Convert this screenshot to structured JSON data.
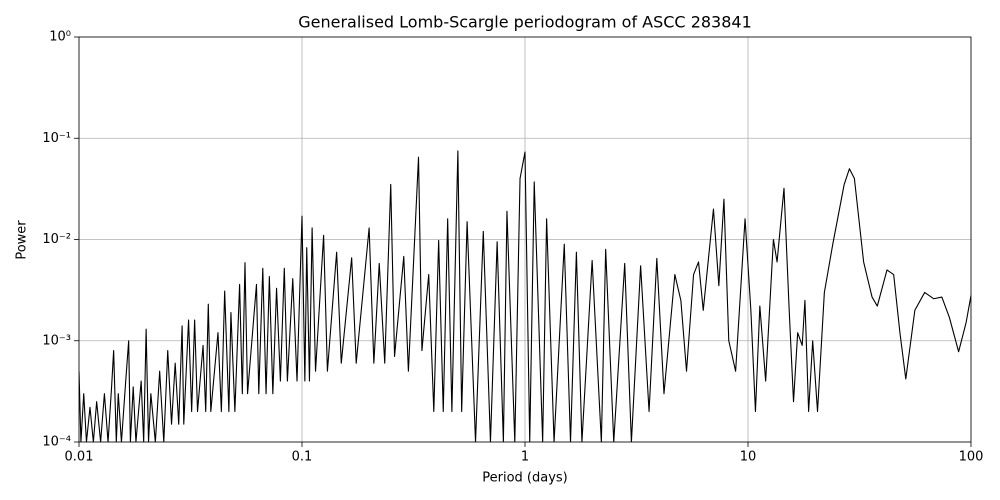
{
  "chart_data": {
    "type": "line",
    "title": "Generalised Lomb-Scargle periodogram of ASCC 283841",
    "x_label": "Period (days)",
    "y_label": "Power",
    "x_scale": "log",
    "y_scale": "log",
    "grid": true,
    "color": "#000000",
    "xlim": [
      0.01,
      100
    ],
    "ylim": [
      0.0001,
      1
    ],
    "xticks": [
      0.01,
      0.1,
      1,
      10,
      100
    ],
    "yticks": [
      {
        "value": 0.0001,
        "label": "10⁻⁴"
      },
      {
        "value": 0.001,
        "label": "10⁻³"
      },
      {
        "value": 0.01,
        "label": "10⁻²"
      },
      {
        "value": 0.1,
        "label": "10⁻¹"
      },
      {
        "value": 1,
        "label": "10⁰"
      }
    ],
    "x": [
      0.01,
      0.0102,
      0.0105,
      0.0108,
      0.0112,
      0.0116,
      0.012,
      0.0125,
      0.013,
      0.0135,
      0.014,
      0.0143,
      0.0147,
      0.015,
      0.0155,
      0.0162,
      0.0167,
      0.017,
      0.0175,
      0.018,
      0.019,
      0.0195,
      0.02,
      0.0205,
      0.021,
      0.022,
      0.023,
      0.024,
      0.025,
      0.026,
      0.027,
      0.028,
      0.029,
      0.0295,
      0.031,
      0.032,
      0.033,
      0.034,
      0.036,
      0.037,
      0.038,
      0.039,
      0.042,
      0.0435,
      0.045,
      0.047,
      0.048,
      0.05,
      0.0525,
      0.054,
      0.0555,
      0.057,
      0.0625,
      0.064,
      0.0667,
      0.069,
      0.0714,
      0.074,
      0.0769,
      0.08,
      0.0833,
      0.086,
      0.0909,
      0.095,
      0.1,
      0.103,
      0.105,
      0.108,
      0.111,
      0.115,
      0.125,
      0.13,
      0.143,
      0.15,
      0.167,
      0.175,
      0.2,
      0.21,
      0.222,
      0.235,
      0.25,
      0.26,
      0.286,
      0.3,
      0.333,
      0.345,
      0.37,
      0.39,
      0.41,
      0.43,
      0.45,
      0.47,
      0.5,
      0.52,
      0.55,
      0.6,
      0.65,
      0.7,
      0.75,
      0.8,
      0.83,
      0.9,
      0.95,
      1,
      1.05,
      1.1,
      1.2,
      1.25,
      1.35,
      1.5,
      1.6,
      1.7,
      1.8,
      2,
      2.2,
      2.3,
      2.5,
      2.8,
      3,
      3.3,
      3.6,
      3.9,
      4.2,
      4.7,
      5,
      5.3,
      5.7,
      6,
      6.3,
      7,
      7.4,
      7.8,
      8.2,
      8.8,
      9.7,
      10.3,
      10.8,
      11.3,
      12,
      13,
      13.5,
      14.5,
      15.3,
      16,
      16.7,
      17.5,
      18,
      18.7,
      19.5,
      20.5,
      22,
      24,
      27,
      28.5,
      30,
      33,
      36,
      38,
      42,
      45,
      48,
      51,
      56,
      62,
      68,
      74,
      80,
      88,
      95,
      100
    ],
    "values": [
      0.0005,
      0.0001,
      0.0003,
      0.0001,
      0.00022,
      0.0001,
      0.00025,
      0.0001,
      0.0003,
      0.0001,
      0.00035,
      0.0008,
      0.0001,
      0.0003,
      0.0001,
      0.0004,
      0.001,
      0.0001,
      0.00035,
      0.0001,
      0.0004,
      0.0001,
      0.0013,
      0.0001,
      0.0003,
      0.0001,
      0.0005,
      0.0001,
      0.0008,
      0.00015,
      0.0006,
      0.00015,
      0.0014,
      0.00015,
      0.0016,
      0.0002,
      0.0016,
      0.0002,
      0.0009,
      0.0002,
      0.0023,
      0.0002,
      0.0012,
      0.0002,
      0.0031,
      0.0002,
      0.0019,
      0.0002,
      0.0036,
      0.0003,
      0.0059,
      0.0003,
      0.0036,
      0.0003,
      0.0052,
      0.0003,
      0.0043,
      0.0003,
      0.0033,
      0.0004,
      0.0052,
      0.0004,
      0.0041,
      0.0004,
      0.017,
      0.0004,
      0.0083,
      0.0004,
      0.013,
      0.0005,
      0.011,
      0.0005,
      0.0075,
      0.0006,
      0.0066,
      0.0006,
      0.013,
      0.0006,
      0.0058,
      0.0006,
      0.035,
      0.0007,
      0.0068,
      0.0005,
      0.065,
      0.0008,
      0.0045,
      0.0002,
      0.0098,
      0.0002,
      0.016,
      0.0002,
      0.075,
      0.0002,
      0.015,
      0.0001,
      0.012,
      0.0001,
      0.0095,
      0.0001,
      0.019,
      0.0001,
      0.04,
      0.073,
      0.0001,
      0.037,
      0.0001,
      0.016,
      0.0001,
      0.009,
      0.0001,
      0.0075,
      0.0001,
      0.0062,
      0.0001,
      0.008,
      0.0001,
      0.0058,
      0.0001,
      0.0055,
      0.0002,
      0.0065,
      0.0003,
      0.0045,
      0.0025,
      0.0005,
      0.0045,
      0.006,
      0.002,
      0.02,
      0.0035,
      0.025,
      0.001,
      0.0005,
      0.016,
      0.002,
      0.0002,
      0.0022,
      0.0004,
      0.01,
      0.006,
      0.032,
      0.002,
      0.00025,
      0.0012,
      0.0009,
      0.0025,
      0.0002,
      0.001,
      0.0002,
      0.003,
      0.009,
      0.035,
      0.05,
      0.04,
      0.006,
      0.0027,
      0.0022,
      0.005,
      0.0045,
      0.0012,
      0.00042,
      0.002,
      0.003,
      0.0026,
      0.0027,
      0.0017,
      0.00078,
      0.0015,
      0.0028
    ]
  }
}
